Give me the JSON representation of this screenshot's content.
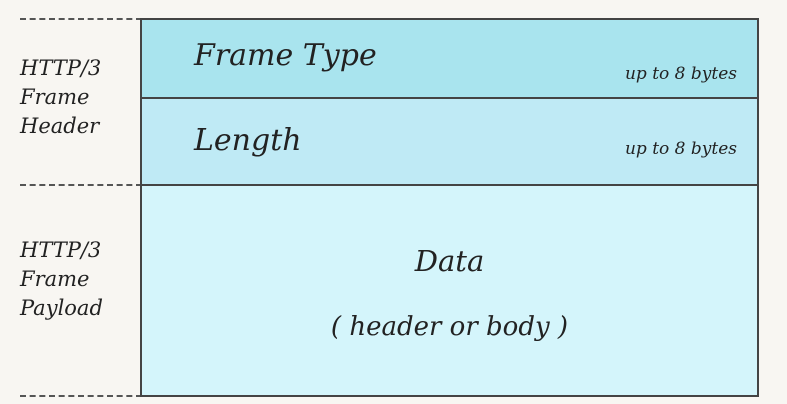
{
  "header_group": {
    "label": "HTTP/3\nFrame\nHeader"
  },
  "payload_group": {
    "label": "HTTP/3\nFrame\nPayload"
  },
  "fields": [
    {
      "name": "Frame Type",
      "size": "up to 8 bytes",
      "fill": "#a9e4ee"
    },
    {
      "name": "Length",
      "size": "up to 8 bytes",
      "fill": "#bfeaf5"
    }
  ],
  "payload": {
    "name": "Data",
    "detail": "( header or body )",
    "fill": "#d4f5fb"
  },
  "colors": {
    "background": "#f8f6f2",
    "border": "#444444"
  }
}
